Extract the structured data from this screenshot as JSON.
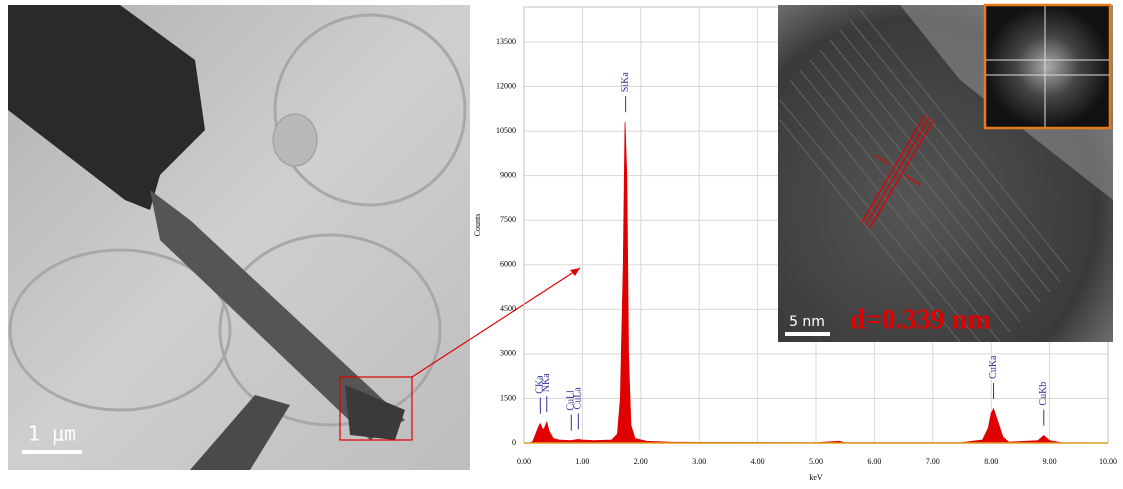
{
  "chart_data": {
    "type": "area",
    "y_label": "Counts",
    "x_label": "keV",
    "color": "#e00000",
    "grid": true,
    "x": [
      0.0,
      0.1,
      0.15,
      0.2,
      0.25,
      0.28,
      0.31,
      0.34,
      0.39,
      0.43,
      0.5,
      0.6,
      0.8,
      0.93,
      1.0,
      1.2,
      1.5,
      1.6,
      1.65,
      1.7,
      1.73,
      1.76,
      1.79,
      1.83,
      1.9,
      2.1,
      2.5,
      3.0,
      4.0,
      5.0,
      5.4,
      5.5,
      6.5,
      7.5,
      7.85,
      7.95,
      8.0,
      8.04,
      8.1,
      8.2,
      8.3,
      8.8,
      8.9,
      9.0,
      9.2,
      10.0
    ],
    "values": [
      0,
      0,
      50,
      300,
      550,
      650,
      500,
      450,
      700,
      400,
      150,
      100,
      80,
      120,
      100,
      80,
      100,
      300,
      1500,
      6000,
      10800,
      9000,
      3000,
      600,
      150,
      60,
      30,
      20,
      15,
      10,
      60,
      10,
      10,
      15,
      100,
      500,
      1000,
      1150,
      800,
      200,
      30,
      80,
      250,
      80,
      10,
      0
    ],
    "xlim": [
      0,
      10
    ],
    "ylim": [
      0,
      13500
    ],
    "xticks": [
      {
        "value": 0,
        "label": "0.00"
      },
      {
        "value": 1,
        "label": "1.00"
      },
      {
        "value": 2,
        "label": "2.00"
      },
      {
        "value": 3,
        "label": "3.00"
      },
      {
        "value": 4,
        "label": "4.00"
      },
      {
        "value": 5,
        "label": "5.00"
      },
      {
        "value": 6,
        "label": "6.00"
      },
      {
        "value": 7,
        "label": "7.00"
      },
      {
        "value": 8,
        "label": "8.00"
      },
      {
        "value": 9,
        "label": "9.00"
      },
      {
        "value": 10,
        "label": "10.00"
      }
    ],
    "yticks": [
      0,
      1500,
      3000,
      4500,
      6000,
      7500,
      9000,
      10500,
      12000,
      13500
    ],
    "annotations": [
      {
        "text": "CKa",
        "x": 0.28
      },
      {
        "text": "NKa",
        "x": 0.39
      },
      {
        "text": "CuLl",
        "x": 0.81
      },
      {
        "text": "CuLa",
        "x": 0.93
      },
      {
        "text": "SiKa",
        "x": 1.74
      },
      {
        "text": "CuKa",
        "x": 8.04
      },
      {
        "text": "CuKb",
        "x": 8.9
      }
    ]
  },
  "images": {
    "tem_scale": "1 μm",
    "hrtem_scale": "5 nm",
    "d_spacing": "d=0.339 nm"
  }
}
